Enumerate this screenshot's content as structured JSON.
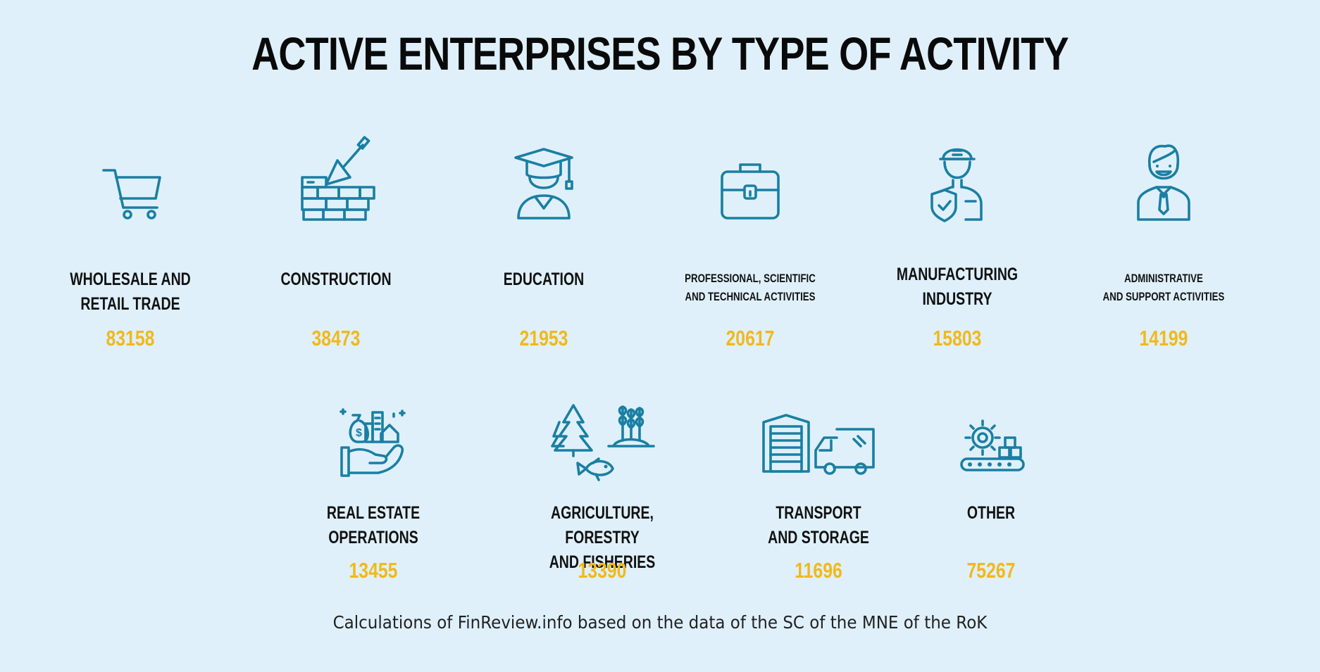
{
  "title": "ACTIVE ENTERPRISES BY TYPE OF ACTIVITY",
  "source": "Calculations of FinReview.info based on the data of the SC of the MNE of the RoK",
  "colors": {
    "background": "#dff0fa",
    "icon": "#1a7fa3",
    "value": "#f0b91c",
    "text": "#111111"
  },
  "items": [
    {
      "label": "WHOLESALE AND\nRETAIL TRADE",
      "value": "83158",
      "icon": "shopping-cart-icon"
    },
    {
      "label": "CONSTRUCTION",
      "value": "38473",
      "icon": "brick-wall-trowel-icon"
    },
    {
      "label": "EDUCATION",
      "value": "21953",
      "icon": "graduate-icon"
    },
    {
      "label": "PROFESSIONAL, SCIENTIFIC\nAND TECHNICAL ACTIVITIES",
      "value": "20617",
      "icon": "briefcase-icon"
    },
    {
      "label": "MANUFACTURING\nINDUSTRY",
      "value": "15803",
      "icon": "worker-icon"
    },
    {
      "label": "ADMINISTRATIVE\nAND SUPPORT ACTIVITIES",
      "value": "14199",
      "icon": "manager-icon"
    },
    {
      "label": "REAL ESTATE\nOPERATIONS",
      "value": "13455",
      "icon": "real-estate-hand-icon"
    },
    {
      "label": "AGRICULTURE, FORESTRY\nAND FISHERIES",
      "value": "13390",
      "icon": "agriculture-icon"
    },
    {
      "label": "TRANSPORT\nAND STORAGE",
      "value": "11696",
      "icon": "transport-icon"
    },
    {
      "label": "OTHER",
      "value": "75267",
      "icon": "gear-conveyor-icon"
    }
  ],
  "chart_data": {
    "type": "table",
    "title": "ACTIVE ENTERPRISES BY TYPE OF ACTIVITY",
    "categories": [
      "WHOLESALE AND RETAIL TRADE",
      "CONSTRUCTION",
      "EDUCATION",
      "PROFESSIONAL, SCIENTIFIC AND TECHNICAL ACTIVITIES",
      "MANUFACTURING INDUSTRY",
      "ADMINISTRATIVE AND SUPPORT ACTIVITIES",
      "REAL ESTATE OPERATIONS",
      "AGRICULTURE, FORESTRY AND FISHERIES",
      "TRANSPORT AND STORAGE",
      "OTHER"
    ],
    "values": [
      83158,
      38473,
      21953,
      20617,
      15803,
      14199,
      13455,
      13390,
      11696,
      75267
    ]
  }
}
